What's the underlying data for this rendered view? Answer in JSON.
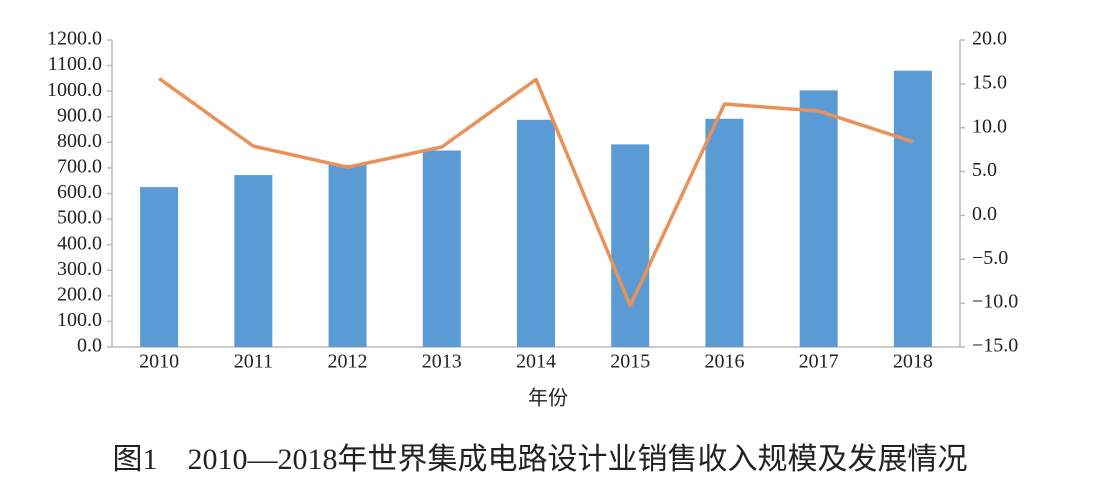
{
  "chart_data": {
    "type": "bar-line",
    "title": "图1　2010—2018年世界集成电路设计业销售收入规模及发展情况",
    "x_label": "年份",
    "categories": [
      "2010",
      "2011",
      "2012",
      "2013",
      "2014",
      "2015",
      "2016",
      "2017",
      "2018"
    ],
    "series": [
      {
        "type": "bar",
        "color": "#5b9bd5",
        "values": [
          625,
          672,
          712,
          768,
          888,
          792,
          892,
          1003,
          1080
        ]
      },
      {
        "type": "line",
        "axis": "y2",
        "color": "#e8925a",
        "values": [
          15.6,
          7.9,
          5.5,
          7.8,
          15.5,
          -10.3,
          12.7,
          11.9,
          8.4
        ]
      }
    ],
    "ylim": [
      0,
      1200
    ],
    "yticks": [
      {
        "value": 0,
        "label": "0.0"
      },
      {
        "value": 100,
        "label": "100.0"
      },
      {
        "value": 200,
        "label": "200.0"
      },
      {
        "value": 300,
        "label": "300.0"
      },
      {
        "value": 400,
        "label": "400.0"
      },
      {
        "value": 500,
        "label": "500.0"
      },
      {
        "value": 600,
        "label": "600.0"
      },
      {
        "value": 700,
        "label": "700.0"
      },
      {
        "value": 800,
        "label": "800.0"
      },
      {
        "value": 900,
        "label": "900.0"
      },
      {
        "value": 1000,
        "label": "1000.0"
      },
      {
        "value": 1100,
        "label": "1100.0"
      },
      {
        "value": 1200,
        "label": "1200.0"
      }
    ],
    "y2lim": [
      -15,
      20
    ],
    "y2ticks": [
      {
        "value": -15,
        "label": "−15.0"
      },
      {
        "value": -10,
        "label": "−10.0"
      },
      {
        "value": -5,
        "label": "−5.0"
      },
      {
        "value": 0,
        "label": "0.0"
      },
      {
        "value": 5,
        "label": "5.0"
      },
      {
        "value": 10,
        "label": "10.0"
      },
      {
        "value": 15,
        "label": "15.0"
      },
      {
        "value": 20,
        "label": "20.0"
      }
    ]
  }
}
